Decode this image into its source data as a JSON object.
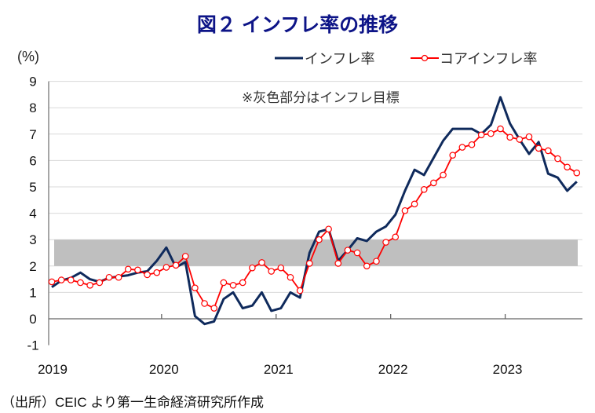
{
  "chart_data": {
    "type": "line",
    "title": "図２ インフレ率の推移",
    "ylabel": "(%)",
    "xlabel": "",
    "ylim": [
      -1,
      9
    ],
    "yticks": [
      -1,
      0,
      1,
      2,
      3,
      4,
      5,
      6,
      7,
      8,
      9
    ],
    "xtick_labels": [
      "2019",
      "2020",
      "2021",
      "2022",
      "2023"
    ],
    "x_start": "2019-01",
    "x_end": "2023-08",
    "frequency": "monthly",
    "grid": true,
    "legend_position": "top-right",
    "annotation": "※灰色部分はインフレ目標",
    "target_band": [
      2,
      3
    ],
    "series": [
      {
        "name": "インフレ率",
        "color": "#0f2a5c",
        "marker": "none",
        "values": [
          1.2,
          1.45,
          1.55,
          1.75,
          1.5,
          1.4,
          1.55,
          1.6,
          1.65,
          1.75,
          1.8,
          2.2,
          2.7,
          1.95,
          2.15,
          0.1,
          -0.2,
          -0.1,
          0.75,
          1.0,
          0.4,
          0.5,
          1.0,
          0.3,
          0.4,
          1.0,
          0.8,
          2.5,
          3.3,
          3.4,
          2.2,
          2.6,
          3.05,
          2.95,
          3.3,
          3.5,
          3.95,
          4.85,
          5.65,
          5.45,
          6.1,
          6.75,
          7.2,
          7.2,
          7.2,
          7.0,
          7.35,
          8.4,
          7.4,
          6.8,
          6.25,
          6.7,
          5.5,
          5.35,
          4.85,
          5.2
        ]
      },
      {
        "name": "コアインフレ率",
        "color": "#ff0000",
        "marker": "circle",
        "values": [
          1.4,
          1.47,
          1.47,
          1.37,
          1.27,
          1.37,
          1.57,
          1.57,
          1.88,
          1.85,
          1.67,
          1.75,
          1.95,
          2.03,
          2.37,
          1.17,
          0.58,
          0.4,
          1.37,
          1.27,
          1.37,
          1.93,
          2.13,
          1.8,
          1.93,
          1.57,
          1.07,
          2.1,
          3.0,
          3.4,
          2.1,
          2.6,
          2.5,
          2.0,
          2.18,
          2.9,
          3.1,
          4.1,
          4.35,
          4.9,
          5.15,
          5.45,
          6.2,
          6.5,
          6.6,
          6.97,
          7.02,
          7.2,
          6.88,
          6.8,
          6.9,
          6.46,
          6.37,
          6.07,
          5.75,
          5.53
        ]
      }
    ]
  },
  "source": "（出所）CEIC より第一生命経済研究所作成"
}
